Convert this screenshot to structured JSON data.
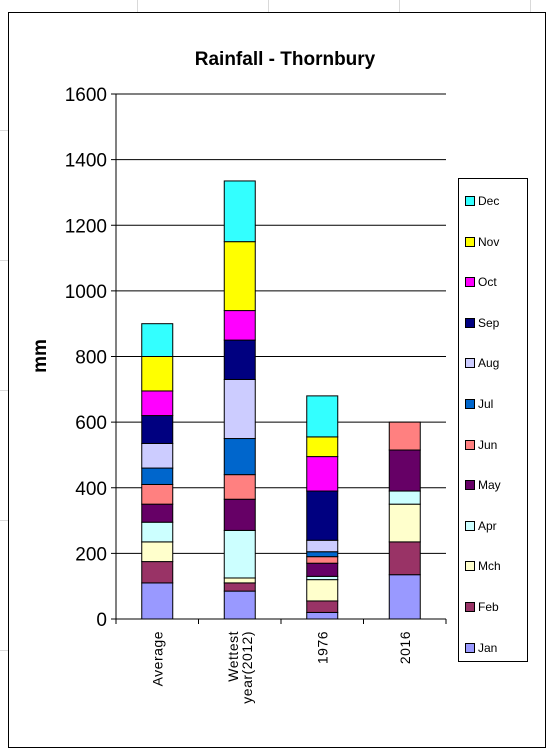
{
  "chart_data": {
    "type": "bar",
    "stacked": true,
    "title": "Rainfall - Thornbury",
    "xlabel": "",
    "ylabel": "mm",
    "ylim": [
      0,
      1600
    ],
    "yticks": [
      "0",
      "200",
      "400",
      "600",
      "800",
      "1000",
      "1200",
      "1400",
      "1600"
    ],
    "grid": true,
    "legend_position": "right",
    "categories": [
      "Average",
      "Wettest year(2012)",
      "1976",
      "2016"
    ],
    "category_lines": [
      [
        "Average"
      ],
      [
        "Wettest",
        "year(2012)"
      ],
      [
        "1976"
      ],
      [
        "2016"
      ]
    ],
    "series": [
      {
        "name": "Jan",
        "color": "#9999ff",
        "values": [
          110,
          85,
          20,
          135
        ]
      },
      {
        "name": "Feb",
        "color": "#993366",
        "values": [
          65,
          25,
          35,
          100
        ]
      },
      {
        "name": "Mch",
        "color": "#ffffcc",
        "values": [
          60,
          15,
          65,
          115
        ]
      },
      {
        "name": "Apr",
        "color": "#ccffff",
        "values": [
          60,
          145,
          10,
          40
        ]
      },
      {
        "name": "May",
        "color": "#660066",
        "values": [
          55,
          95,
          40,
          125
        ]
      },
      {
        "name": "Jun",
        "color": "#ff8080",
        "values": [
          60,
          75,
          20,
          85
        ]
      },
      {
        "name": "Jul",
        "color": "#0066cc",
        "values": [
          50,
          110,
          15,
          0
        ]
      },
      {
        "name": "Aug",
        "color": "#ccccff",
        "values": [
          75,
          180,
          35,
          0
        ]
      },
      {
        "name": "Sep",
        "color": "#000080",
        "values": [
          85,
          120,
          150,
          0
        ]
      },
      {
        "name": "Oct",
        "color": "#ff00ff",
        "values": [
          75,
          90,
          105,
          0
        ]
      },
      {
        "name": "Nov",
        "color": "#ffff00",
        "values": [
          105,
          210,
          60,
          0
        ]
      },
      {
        "name": "Dec",
        "color": "#33ffff",
        "values": [
          100,
          185,
          125,
          0
        ]
      }
    ]
  }
}
